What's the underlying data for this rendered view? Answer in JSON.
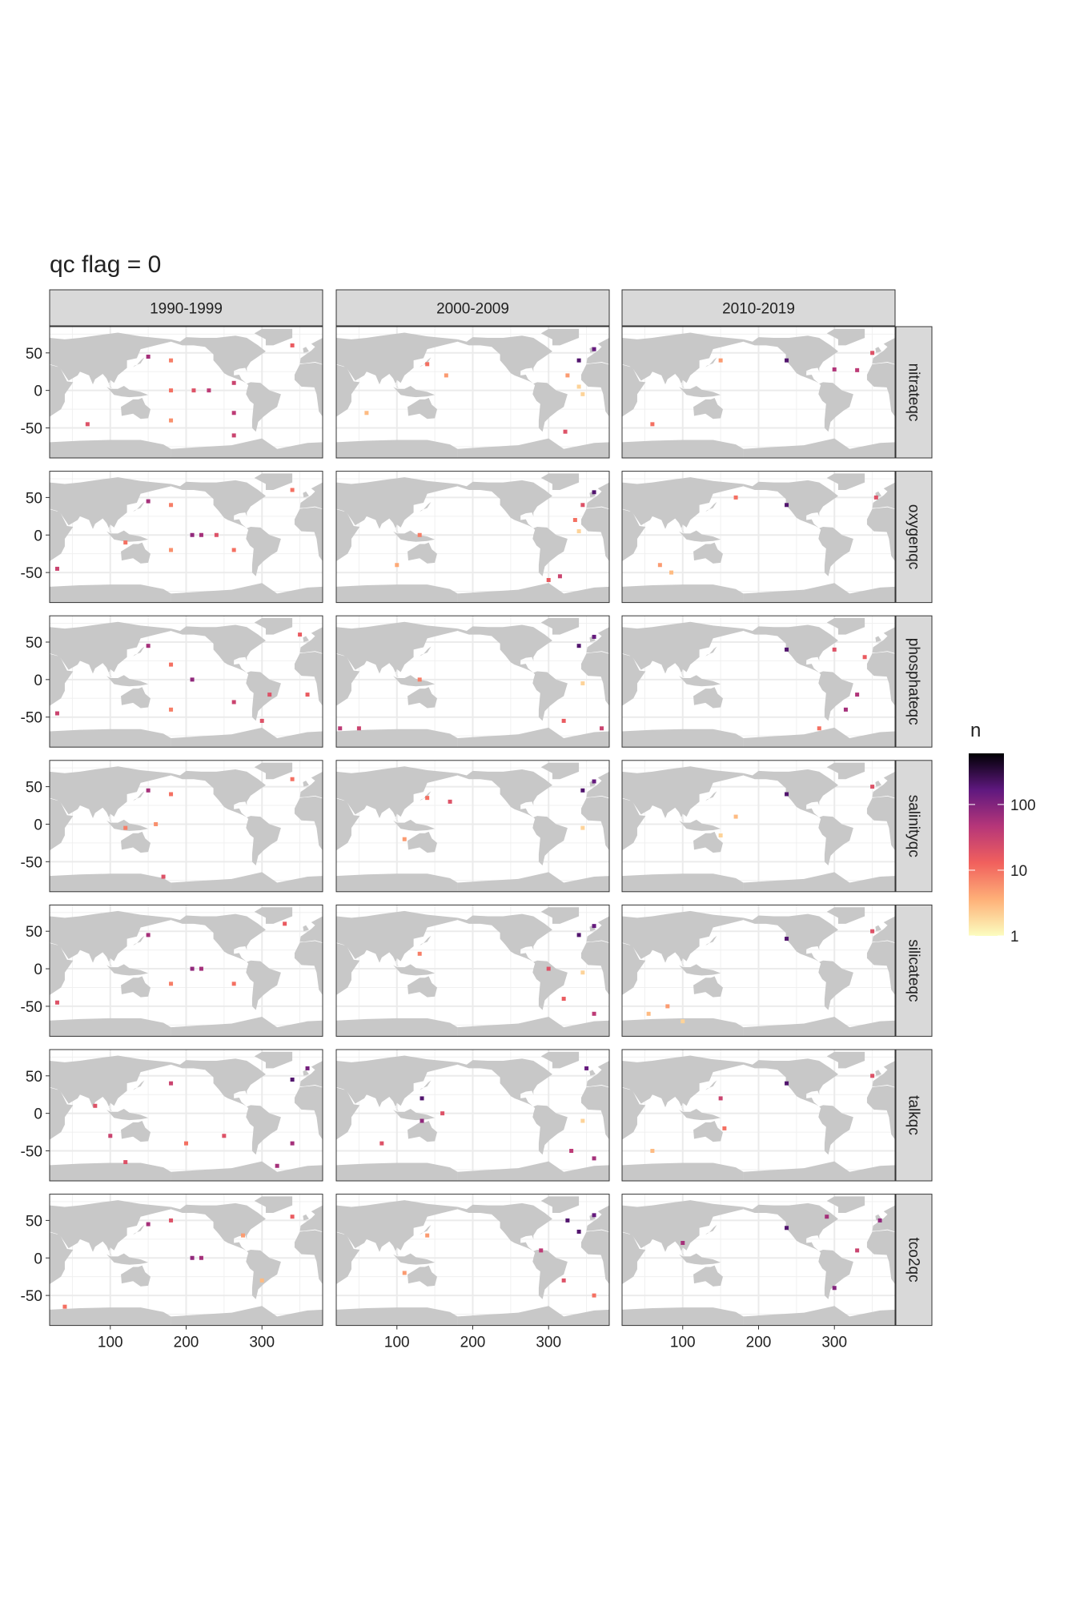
{
  "chart_data": {
    "type": "tile-map",
    "title": "qc flag = 0",
    "columns": [
      "1990-1999",
      "2000-2009",
      "2010-2019"
    ],
    "rows": [
      "nitrateqc",
      "oxygenqc",
      "phosphateqc",
      "salinityqc",
      "silicateqc",
      "talkqc",
      "tco2qc"
    ],
    "xlim": [
      20,
      380
    ],
    "xticks": [
      100,
      200,
      300
    ],
    "ylim": [
      -90,
      85
    ],
    "yticks": [
      -50,
      0,
      50
    ],
    "grid": true,
    "legend": {
      "title": "n",
      "log": true,
      "lim": [
        1,
        600
      ],
      "ticks": [
        1,
        10,
        100
      ],
      "colorscale": [
        "#FCFDBF",
        "#FEB078",
        "#F1605D",
        "#B63679",
        "#5F187F",
        "#000004"
      ]
    },
    "cells": [
      {
        "x": [
          180,
          180,
          180,
          263,
          263,
          263,
          150,
          210,
          230,
          340,
          70
        ],
        "y": [
          40,
          0,
          -40,
          10,
          -30,
          -60,
          45,
          0,
          0,
          60,
          -45
        ],
        "n": [
          8,
          10,
          6,
          30,
          40,
          30,
          60,
          20,
          40,
          15,
          20
        ]
      },
      {
        "x": [
          340,
          360,
          325,
          340,
          322,
          140,
          165,
          60,
          345
        ],
        "y": [
          40,
          55,
          20,
          5,
          -55,
          35,
          20,
          -30,
          -5
        ],
        "n": [
          200,
          150,
          5,
          2,
          20,
          10,
          5,
          3,
          2
        ]
      },
      {
        "x": [
          237,
          300,
          330,
          350,
          60,
          150
        ],
        "y": [
          40,
          28,
          27,
          50,
          -45,
          40
        ],
        "n": [
          200,
          50,
          40,
          20,
          10,
          5
        ]
      },
      {
        "x": [
          180,
          180,
          150,
          208,
          220,
          240,
          263,
          340,
          30,
          120
        ],
        "y": [
          40,
          -20,
          45,
          0,
          0,
          0,
          -20,
          60,
          -45,
          -10
        ],
        "n": [
          8,
          6,
          60,
          80,
          60,
          20,
          10,
          10,
          30,
          10
        ]
      },
      {
        "x": [
          360,
          345,
          335,
          340,
          315,
          300,
          130,
          100
        ],
        "y": [
          57,
          40,
          20,
          5,
          -55,
          -60,
          0,
          -40
        ],
        "n": [
          200,
          20,
          10,
          2,
          30,
          15,
          8,
          4
        ]
      },
      {
        "x": [
          237,
          170,
          355,
          70,
          85
        ],
        "y": [
          40,
          50,
          50,
          -40,
          -50
        ],
        "n": [
          200,
          10,
          20,
          5,
          3
        ]
      },
      {
        "x": [
          150,
          180,
          180,
          208,
          263,
          310,
          360,
          350,
          30,
          300
        ],
        "y": [
          45,
          20,
          -40,
          0,
          -30,
          -20,
          -20,
          60,
          -45,
          -55
        ],
        "n": [
          60,
          10,
          8,
          80,
          30,
          20,
          15,
          15,
          30,
          20
        ]
      },
      {
        "x": [
          340,
          360,
          25,
          50,
          320,
          370,
          130,
          345
        ],
        "y": [
          45,
          57,
          -65,
          -65,
          -55,
          -65,
          0,
          -5
        ],
        "n": [
          200,
          150,
          40,
          30,
          15,
          30,
          8,
          2
        ]
      },
      {
        "x": [
          237,
          300,
          340,
          330,
          315,
          280
        ],
        "y": [
          40,
          40,
          30,
          -20,
          -40,
          -65
        ],
        "n": [
          200,
          20,
          15,
          50,
          60,
          10
        ]
      },
      {
        "x": [
          150,
          180,
          120,
          160,
          170,
          340
        ],
        "y": [
          45,
          40,
          -5,
          0,
          -70,
          60
        ],
        "n": [
          60,
          10,
          8,
          6,
          20,
          10
        ]
      },
      {
        "x": [
          345,
          360,
          345,
          140,
          170,
          110
        ],
        "y": [
          45,
          57,
          -5,
          35,
          30,
          -20
        ],
        "n": [
          200,
          150,
          2,
          10,
          20,
          5
        ]
      },
      {
        "x": [
          237,
          350,
          150,
          170
        ],
        "y": [
          40,
          50,
          -15,
          10
        ],
        "n": [
          200,
          20,
          2,
          3
        ]
      },
      {
        "x": [
          150,
          180,
          208,
          220,
          263,
          330,
          30
        ],
        "y": [
          45,
          -20,
          0,
          0,
          -20,
          60,
          -45
        ],
        "n": [
          60,
          8,
          80,
          60,
          10,
          15,
          20
        ]
      },
      {
        "x": [
          340,
          360,
          130,
          300,
          320,
          360,
          345
        ],
        "y": [
          45,
          57,
          20,
          0,
          -40,
          -60,
          -5
        ],
        "n": [
          200,
          150,
          8,
          20,
          15,
          40,
          2
        ]
      },
      {
        "x": [
          237,
          350,
          55,
          80,
          100
        ],
        "y": [
          40,
          50,
          -60,
          -50,
          -70
        ],
        "n": [
          200,
          20,
          3,
          5,
          2
        ]
      },
      {
        "x": [
          80,
          100,
          180,
          250,
          340,
          360,
          340,
          320,
          120,
          200
        ],
        "y": [
          10,
          -30,
          40,
          -30,
          45,
          60,
          -40,
          -70,
          -65,
          -40
        ],
        "n": [
          20,
          30,
          30,
          20,
          200,
          120,
          60,
          60,
          20,
          10
        ]
      },
      {
        "x": [
          133,
          133,
          160,
          350,
          330,
          360,
          80,
          345
        ],
        "y": [
          20,
          -10,
          0,
          60,
          -50,
          -60,
          -40,
          -10
        ],
        "n": [
          200,
          80,
          20,
          150,
          40,
          60,
          20,
          2
        ]
      },
      {
        "x": [
          237,
          150,
          155,
          350,
          60
        ],
        "y": [
          40,
          20,
          -20,
          50,
          -50
        ],
        "n": [
          200,
          30,
          10,
          20,
          3
        ]
      },
      {
        "x": [
          150,
          180,
          208,
          220,
          275,
          300,
          340,
          40
        ],
        "y": [
          45,
          50,
          0,
          0,
          30,
          -30,
          55,
          -65
        ],
        "n": [
          60,
          20,
          80,
          60,
          5,
          3,
          15,
          10
        ]
      },
      {
        "x": [
          325,
          340,
          360,
          290,
          320,
          360,
          140,
          110
        ],
        "y": [
          50,
          35,
          57,
          10,
          -30,
          -50,
          30,
          -20
        ],
        "n": [
          200,
          200,
          150,
          40,
          20,
          10,
          5,
          5
        ]
      },
      {
        "x": [
          237,
          290,
          330,
          300,
          360,
          100
        ],
        "y": [
          40,
          55,
          10,
          -40,
          50,
          20
        ],
        "n": [
          200,
          60,
          30,
          100,
          80,
          60
        ]
      }
    ]
  }
}
